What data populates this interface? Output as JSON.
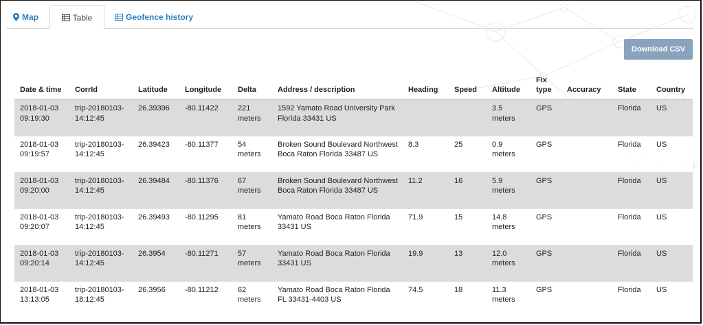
{
  "tabs": [
    {
      "label": "Map",
      "icon": "map-marker-icon"
    },
    {
      "label": "Table",
      "icon": "table-icon"
    },
    {
      "label": "Geofence history",
      "icon": "table-icon"
    }
  ],
  "actions": {
    "download_label": "Download CSV"
  },
  "columns": {
    "datetime": "Date & time",
    "corrid": "CorrId",
    "latitude": "Latitude",
    "longitude": "Longitude",
    "delta": "Delta",
    "address": "Address / description",
    "heading": "Heading",
    "speed": "Speed",
    "altitude": "Altitude",
    "fixtype": "Fix type",
    "accuracy": "Accuracy",
    "state": "State",
    "country": "Country"
  },
  "rows": [
    {
      "datetime": "2018-01-03 09:19:30",
      "corrid": "trip-20180103-14:12:45",
      "latitude": "26.39396",
      "longitude": "-80.11422",
      "delta": "221 meters",
      "address": "1592 Yamato Road University Park Florida 33431 US",
      "heading": "",
      "speed": "",
      "altitude": "3.5 meters",
      "fixtype": "GPS",
      "accuracy": "",
      "state": "Florida",
      "country": "US"
    },
    {
      "datetime": "2018-01-03 09:19:57",
      "corrid": "trip-20180103-14:12:45",
      "latitude": "26.39423",
      "longitude": "-80.11377",
      "delta": "54 meters",
      "address": "Broken Sound Boulevard Northwest Boca Raton Florida 33487 US",
      "heading": "8.3",
      "speed": "25",
      "altitude": "0.9 meters",
      "fixtype": "GPS",
      "accuracy": "",
      "state": "Florida",
      "country": "US"
    },
    {
      "datetime": "2018-01-03 09:20:00",
      "corrid": "trip-20180103-14:12:45",
      "latitude": "26.39484",
      "longitude": "-80.11376",
      "delta": "67 meters",
      "address": "Broken Sound Boulevard Northwest Boca Raton Florida 33487 US",
      "heading": "11.2",
      "speed": "16",
      "altitude": "5.9 meters",
      "fixtype": "GPS",
      "accuracy": "",
      "state": "Florida",
      "country": "US"
    },
    {
      "datetime": "2018-01-03 09:20:07",
      "corrid": "trip-20180103-14:12:45",
      "latitude": "26.39493",
      "longitude": "-80.11295",
      "delta": "81 meters",
      "address": "Yamato Road Boca Raton Florida 33431 US",
      "heading": "71.9",
      "speed": "15",
      "altitude": "14.8 meters",
      "fixtype": "GPS",
      "accuracy": "",
      "state": "Florida",
      "country": "US"
    },
    {
      "datetime": "2018-01-03 09:20:14",
      "corrid": "trip-20180103-14:12:45",
      "latitude": "26.3954",
      "longitude": "-80.11271",
      "delta": "57 meters",
      "address": "Yamato Road Boca Raton Florida 33431 US",
      "heading": "19.9",
      "speed": "13",
      "altitude": "12.0 meters",
      "fixtype": "GPS",
      "accuracy": "",
      "state": "Florida",
      "country": "US"
    },
    {
      "datetime": "2018-01-03 13:13:05",
      "corrid": "trip-20180103-18:12:45",
      "latitude": "26.3956",
      "longitude": "-80.11212",
      "delta": "62 meters",
      "address": "Yamato Road Boca Raton Florida FL 33431-4403 US",
      "heading": "74.5",
      "speed": "18",
      "altitude": "11.3 meters",
      "fixtype": "GPS",
      "accuracy": "",
      "state": "Florida",
      "country": "US"
    }
  ]
}
